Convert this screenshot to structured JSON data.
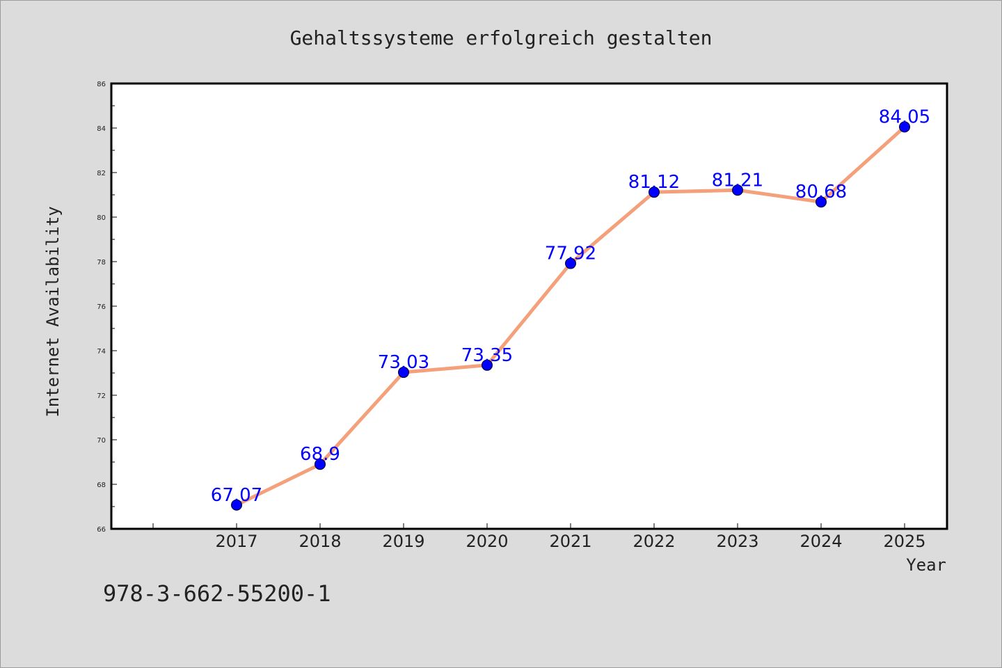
{
  "chart_data": {
    "type": "line",
    "title": "Gehaltssysteme erfolgreich gestalten",
    "xlabel": "Year",
    "ylabel": "Internet Availability",
    "categories": [
      "2017",
      "2018",
      "2019",
      "2020",
      "2021",
      "2022",
      "2023",
      "2024",
      "2025"
    ],
    "series": [
      {
        "values": [
          67.07,
          68.9,
          73.03,
          73.35,
          77.92,
          81.12,
          81.21,
          80.68,
          84.05
        ],
        "data_labels": [
          "67.07",
          "68.9",
          "73.03",
          "73.35",
          "77.92",
          "81.12",
          "81.21",
          "80.68",
          "84.05"
        ],
        "line_color": "#f4a07a",
        "marker_color": "#0000ff"
      }
    ],
    "ylim": [
      66,
      86
    ],
    "yticks": [
      "66",
      "68",
      "70",
      "72",
      "74",
      "76",
      "78",
      "80",
      "82",
      "84",
      "86"
    ],
    "grid": false,
    "legend": "none"
  },
  "annotation": "978-3-662-55200-1",
  "colors": {
    "background": "#dcdcdc",
    "plot_background": "#ffffff",
    "axes": "#000000"
  }
}
